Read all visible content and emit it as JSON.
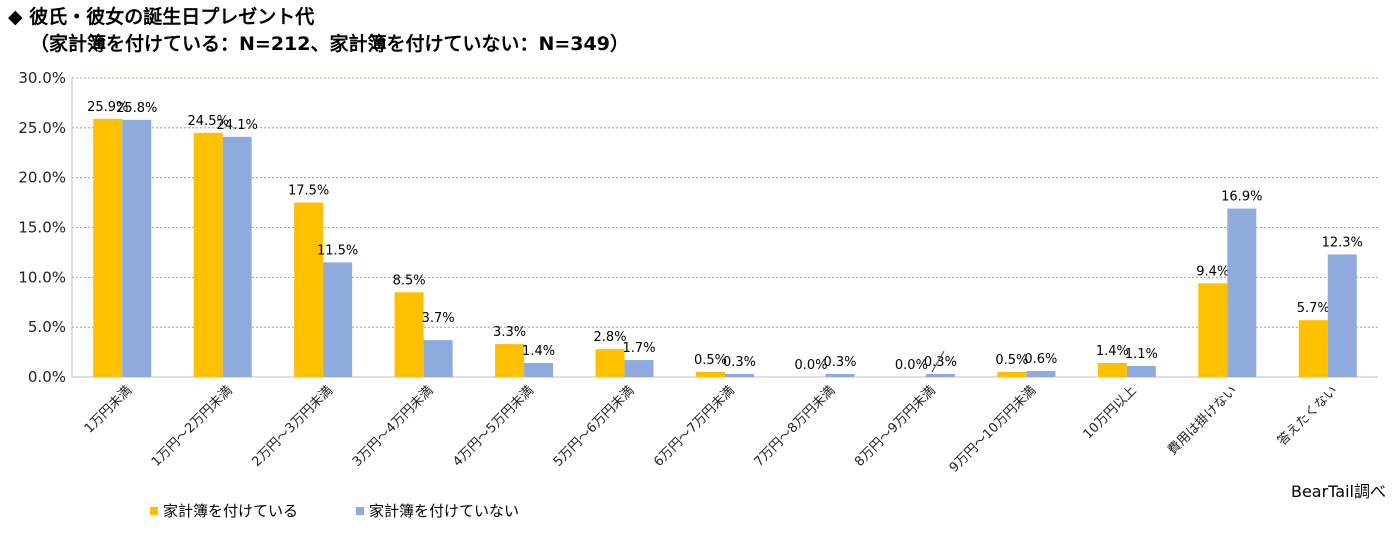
{
  "title": {
    "line1": "◆ 彼氏・彼女の誕生日プレゼント代",
    "line2": "（家計簿を付けている：N=212、家計簿を付けていない：N=349）"
  },
  "credit": "BearTail調べ",
  "colors": {
    "series1": "#FFC000",
    "series2": "#8FAADC",
    "grid": "#70AD47"
  },
  "chart_data": {
    "type": "bar",
    "categories": [
      "1万円未満",
      "1万円～2万円未満",
      "2万円～3万円未満",
      "3万円～4万円未満",
      "4万円～5万円未満",
      "5万円～6万円未満",
      "6万円～7万円未満",
      "7万円～8万円未満",
      "8万円～9万円未満",
      "9万円～10万円未満",
      "10万円以上",
      "費用は掛けない",
      "答えたくない"
    ],
    "series": [
      {
        "name": "家計簿を付けている",
        "values": [
          25.9,
          24.5,
          17.5,
          8.5,
          3.3,
          2.8,
          0.5,
          0.0,
          0.0,
          0.5,
          1.4,
          9.4,
          5.7
        ],
        "labels": [
          "25.9%",
          "24.5%",
          "17.5%",
          "8.5%",
          "3.3%",
          "2.8%",
          "0.5%",
          "0.0%",
          "0.0%",
          "0.5%",
          "1.4%",
          "9.4%",
          "5.7%"
        ]
      },
      {
        "name": "家計簿を付けていない",
        "values": [
          25.8,
          24.1,
          11.5,
          3.7,
          1.4,
          1.7,
          0.3,
          0.3,
          0.3,
          0.6,
          1.1,
          16.9,
          12.3
        ],
        "labels": [
          "25.8%",
          "24.1%",
          "11.5%",
          "3.7%",
          "1.4%",
          "1.7%",
          "0.3%",
          "0.3%",
          "0.3%",
          "0.6%",
          "1.1%",
          "16.9%",
          "12.3%"
        ]
      }
    ],
    "yticks": [
      "0.0%",
      "5.0%",
      "10.0%",
      "15.0%",
      "20.0%",
      "25.0%",
      "30.0%"
    ],
    "ylim": [
      0,
      30
    ],
    "grid": true,
    "legend": "bottom-left"
  }
}
